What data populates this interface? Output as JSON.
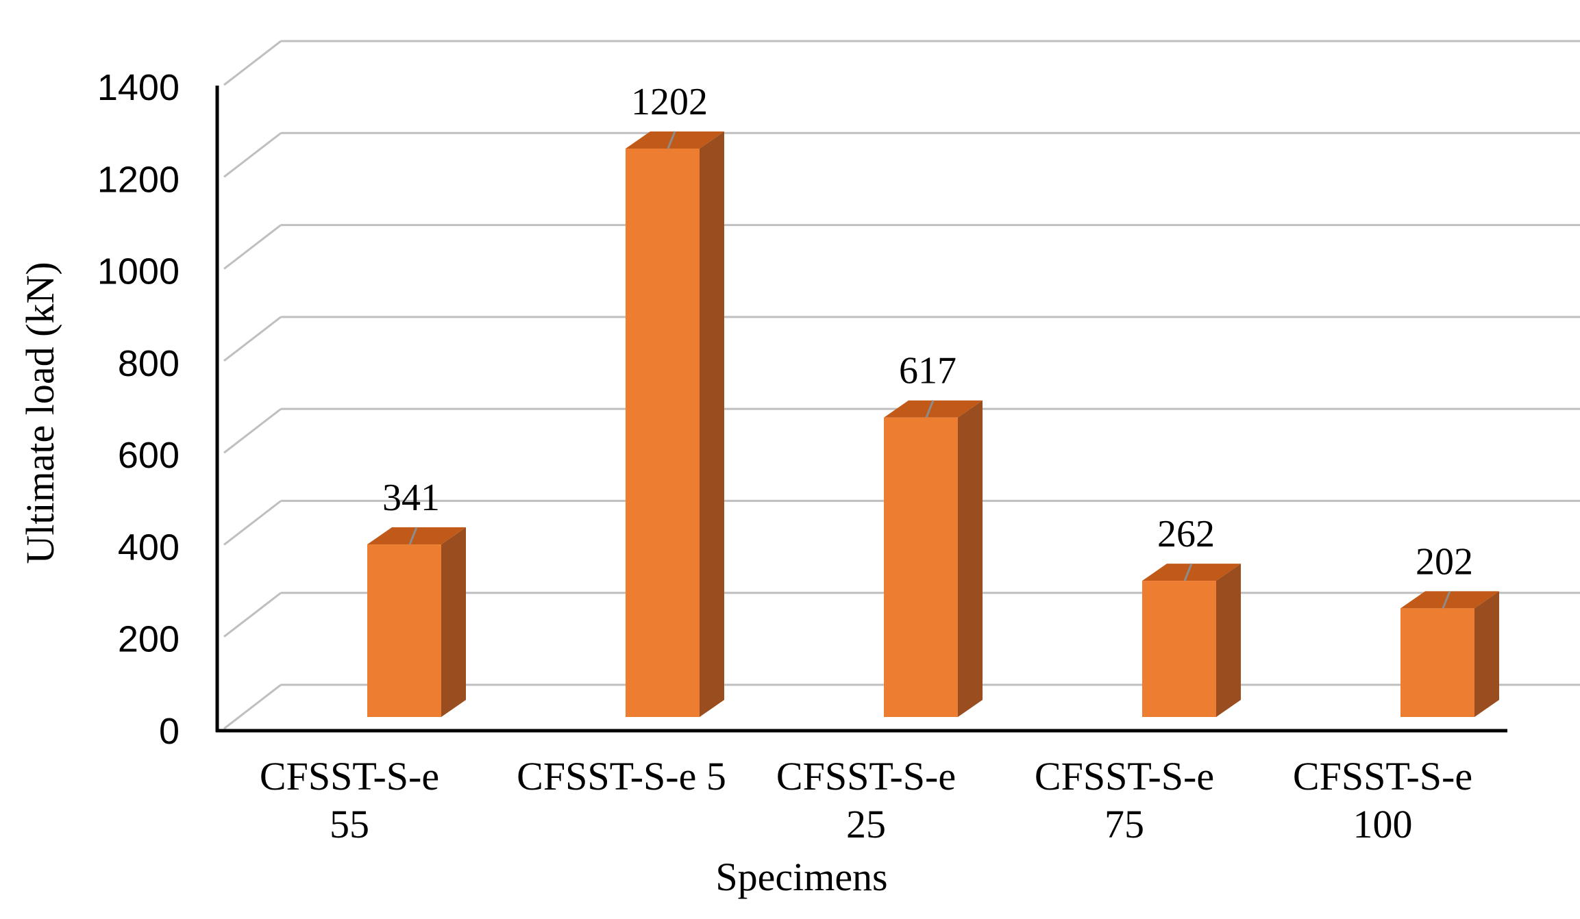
{
  "chart_data": {
    "type": "bar",
    "title": "",
    "xlabel": "Specimens",
    "ylabel": "Ultimate load (kN)",
    "ylim": [
      0,
      1400
    ],
    "yticks": [
      0,
      200,
      400,
      600,
      800,
      1000,
      1200,
      1400
    ],
    "categories": [
      [
        "CFSST-S-e",
        "55"
      ],
      [
        "CFSST-S-e 5"
      ],
      [
        "CFSST-S-e",
        "25"
      ],
      [
        "CFSST-S-e",
        "75"
      ],
      [
        "CFSST-S-e",
        "100"
      ]
    ],
    "values": [
      341,
      1202,
      617,
      262,
      202
    ],
    "data_labels": [
      "341",
      "1202",
      "617",
      "262",
      "202"
    ],
    "grid": true,
    "legend": "none",
    "style": "3d-column",
    "colors": {
      "front": "#ED7D31",
      "side": "#9A4D1E",
      "top": "#C15A19",
      "grid": "#BFBFBF",
      "axis": "#000000"
    }
  }
}
